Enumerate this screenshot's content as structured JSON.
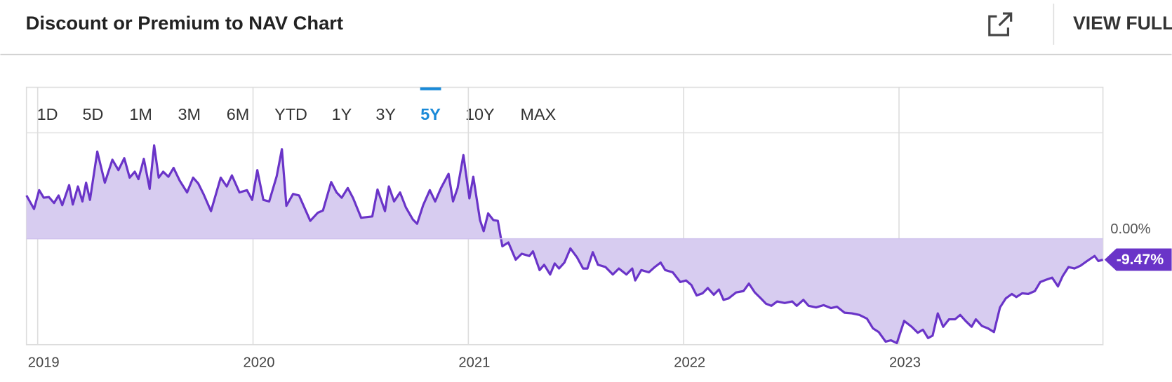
{
  "header": {
    "title": "Discount or Premium to NAV Chart",
    "view_full": "VIEW FULL"
  },
  "range_buttons": [
    {
      "label": "1D"
    },
    {
      "label": "5D"
    },
    {
      "label": "1M"
    },
    {
      "label": "3M"
    },
    {
      "label": "6M"
    },
    {
      "label": "YTD"
    },
    {
      "label": "1Y"
    },
    {
      "label": "3Y"
    },
    {
      "label": "5Y",
      "selected": true
    },
    {
      "label": "10Y"
    },
    {
      "label": "MAX"
    }
  ],
  "chart_data": {
    "type": "area",
    "x": [
      2018.948,
      2018.983,
      2019.007,
      2019.028,
      2019.052,
      2019.076,
      2019.097,
      2019.114,
      2019.146,
      2019.163,
      2019.187,
      2019.208,
      2019.225,
      2019.243,
      2019.277,
      2019.312,
      2019.347,
      2019.375,
      2019.402,
      2019.427,
      2019.451,
      2019.468,
      2019.493,
      2019.52,
      2019.541,
      2019.562,
      2019.583,
      2019.607,
      2019.631,
      2019.659,
      2019.694,
      2019.722,
      2019.746,
      2019.77,
      2019.805,
      2019.85,
      2019.878,
      2019.902,
      2019.937,
      2019.972,
      2019.996,
      2020.02,
      2020.048,
      2020.075,
      2020.11,
      2020.134,
      2020.155,
      2020.186,
      2020.214,
      2020.266,
      2020.301,
      2020.325,
      2020.363,
      2020.388,
      2020.412,
      2020.44,
      2020.464,
      2020.502,
      2020.554,
      2020.578,
      2020.613,
      2020.631,
      2020.655,
      2020.683,
      2020.71,
      2020.742,
      2020.762,
      2020.79,
      2020.821,
      2020.846,
      2020.873,
      2020.908,
      2020.929,
      2020.95,
      2020.977,
      2021.005,
      2021.023,
      2021.054,
      2021.071,
      2021.092,
      2021.116,
      2021.137,
      2021.158,
      2021.186,
      2021.22,
      2021.248,
      2021.283,
      2021.3,
      2021.331,
      2021.352,
      2021.38,
      2021.401,
      2021.421,
      2021.446,
      2021.474,
      2021.505,
      2021.533,
      2021.553,
      2021.578,
      2021.602,
      2021.637,
      2021.671,
      2021.699,
      2021.734,
      2021.761,
      2021.775,
      2021.803,
      2021.838,
      2021.866,
      2021.893,
      2021.914,
      2021.949,
      2021.984,
      2022.011,
      2022.036,
      2022.06,
      2022.088,
      2022.112,
      2022.14,
      2022.164,
      2022.185,
      2022.209,
      2022.244,
      2022.278,
      2022.303,
      2022.33,
      2022.358,
      2022.382,
      2022.407,
      2022.434,
      2022.469,
      2022.504,
      2022.525,
      2022.556,
      2022.58,
      2022.615,
      2022.65,
      2022.684,
      2022.712,
      2022.747,
      2022.781,
      2022.816,
      2022.851,
      2022.879,
      2022.906,
      2022.938,
      2022.962,
      2022.99,
      2023.024,
      2023.059,
      2023.087,
      2023.111,
      2023.135,
      2023.156,
      2023.18,
      2023.205,
      2023.232,
      2023.26,
      2023.284,
      2023.309,
      2023.337,
      2023.357,
      2023.385,
      2023.413,
      2023.441,
      2023.469,
      2023.496,
      2023.524,
      2023.545,
      2023.572,
      2023.6,
      2023.631,
      2023.656,
      2023.683,
      2023.711,
      2023.738,
      2023.76,
      2023.787,
      2023.815,
      2023.843,
      2023.873,
      2023.908,
      2023.926,
      2023.947
    ],
    "series": [
      {
        "color": "#6a34c8",
        "fill": "#d7ccf0",
        "values": [
          19.6,
          13.5,
          22.0,
          18.6,
          18.9,
          16.2,
          19.6,
          15.2,
          24.3,
          15.5,
          23.7,
          16.9,
          25.4,
          17.6,
          39.5,
          25.4,
          35.8,
          31.1,
          36.5,
          27.7,
          30.4,
          27.0,
          36.2,
          22.6,
          42.3,
          27.7,
          30.4,
          28.1,
          32.1,
          26.4,
          21.0,
          27.7,
          25.0,
          20.3,
          12.5,
          27.7,
          23.7,
          28.7,
          21.0,
          22.0,
          17.6,
          31.1,
          17.6,
          16.9,
          28.4,
          40.6,
          14.9,
          20.3,
          19.6,
          8.1,
          11.8,
          12.8,
          25.7,
          21.0,
          18.6,
          23.0,
          18.6,
          9.5,
          10.1,
          22.3,
          12.5,
          23.7,
          16.9,
          21.0,
          14.2,
          8.8,
          6.8,
          15.2,
          22.0,
          16.9,
          23.0,
          29.4,
          16.9,
          23.0,
          37.9,
          18.3,
          28.1,
          8.5,
          3.4,
          11.5,
          8.5,
          8.1,
          -3.4,
          -1.7,
          -9.5,
          -6.8,
          -7.8,
          -5.7,
          -14.2,
          -11.8,
          -16.2,
          -11.2,
          -13.5,
          -10.8,
          -4.4,
          -8.5,
          -13.5,
          -13.5,
          -6.1,
          -11.8,
          -12.8,
          -16.2,
          -13.5,
          -16.2,
          -13.5,
          -18.9,
          -14.2,
          -15.2,
          -12.8,
          -10.8,
          -14.2,
          -15.2,
          -19.6,
          -18.9,
          -21.0,
          -25.7,
          -24.7,
          -22.3,
          -25.4,
          -23.0,
          -27.7,
          -27.0,
          -24.3,
          -23.7,
          -20.3,
          -24.3,
          -27.0,
          -29.4,
          -30.4,
          -28.4,
          -29.1,
          -28.4,
          -30.4,
          -27.7,
          -30.4,
          -31.1,
          -30.1,
          -31.4,
          -30.8,
          -33.5,
          -33.8,
          -34.5,
          -36.2,
          -40.6,
          -42.3,
          -46.6,
          -46.0,
          -47.3,
          -37.2,
          -39.9,
          -42.6,
          -41.2,
          -45.0,
          -43.9,
          -33.8,
          -39.9,
          -36.5,
          -36.5,
          -34.5,
          -37.2,
          -39.9,
          -36.5,
          -39.5,
          -40.6,
          -42.3,
          -31.1,
          -27.0,
          -25.0,
          -26.4,
          -24.7,
          -25.0,
          -23.7,
          -19.6,
          -18.6,
          -17.6,
          -21.6,
          -16.9,
          -12.8,
          -13.5,
          -12.2,
          -10.1,
          -7.8,
          -10.1,
          -9.47
        ]
      }
    ],
    "xlim": [
      2018.948,
      2023.947
    ],
    "xticks": [
      2019,
      2020,
      2021,
      2022,
      2023
    ],
    "ylim": [
      -48,
      48
    ],
    "yticks": [
      {
        "value": 0,
        "label": "0.00%"
      }
    ],
    "last_value": {
      "value": -9.47,
      "label": "-9.47%"
    },
    "grid": true
  }
}
